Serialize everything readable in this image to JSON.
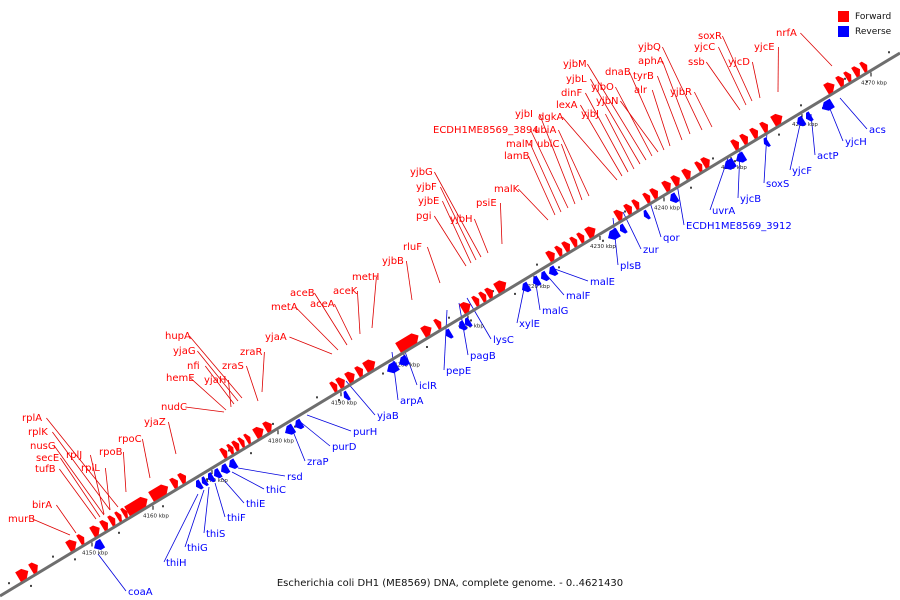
{
  "title": "Escherichia coli DH1 (ME8569) DNA, complete genome. - 0..4621430",
  "legend": [
    {
      "label": "Forward",
      "color": "#ff0000"
    },
    {
      "label": "Reverse",
      "color": "#0000ff"
    }
  ],
  "colors": {
    "forward": "#ff0000",
    "reverse": "#0000ff",
    "backbone": "#6e6e6e",
    "leader_forward": "#dd0000",
    "leader_reverse": "#0000dd"
  },
  "ticks": [
    "4150 kbp",
    "4160 kbp",
    "4170 kbp",
    "4180 kbp",
    "4190 kbp",
    "4200 kbp",
    "4210 kbp",
    "4220 kbp",
    "4230 kbp",
    "4240 kbp",
    "4250 kbp",
    "4260 kbp",
    "4270 kbp"
  ],
  "forward_genes": [
    "murB",
    "birA",
    "tufB",
    "secE",
    "nusG",
    "rplK",
    "rplA",
    "rplJ",
    "rplL",
    "rpoB",
    "rpoC",
    "yjaZ",
    "nudC",
    "hemE",
    "yjaH",
    "nfi",
    "yjaG",
    "hupA",
    "zraS",
    "zraR",
    "yjaA",
    "metA",
    "aceB",
    "aceA",
    "aceK",
    "metH",
    "yjbB",
    "rluF",
    "pgi",
    "yjbE",
    "yjbF",
    "yjbG",
    "yjbH",
    "psiE",
    "malK",
    "lamB",
    "malM",
    "ECDH1ME8569_3894",
    "yjbI",
    "ubiC",
    "ubiA",
    "dgkA",
    "lexA",
    "dinF",
    "yjbJ",
    "yjbL",
    "yjbM",
    "yjbO",
    "yjbN",
    "dnaB",
    "alr",
    "tyrB",
    "aphA",
    "yjbQ",
    "yjbR",
    "ssb",
    "yjcC",
    "soxR",
    "yjcD",
    "yjcE",
    "nrfA"
  ],
  "reverse_genes": [
    "coaA",
    "thiH",
    "thiG",
    "thiS",
    "thiF",
    "thiE",
    "thiC",
    "rsd",
    "zraP",
    "purD",
    "purH",
    "yjaB",
    "arpA",
    "iclR",
    "pepE",
    "pagB",
    "lysC",
    "xylE",
    "malG",
    "malF",
    "malE",
    "plsB",
    "zur",
    "qor",
    "ECDH1ME8569_3912",
    "uvrA",
    "yjcB",
    "soxS",
    "yjcF",
    "actP",
    "yjcH",
    "acs"
  ]
}
